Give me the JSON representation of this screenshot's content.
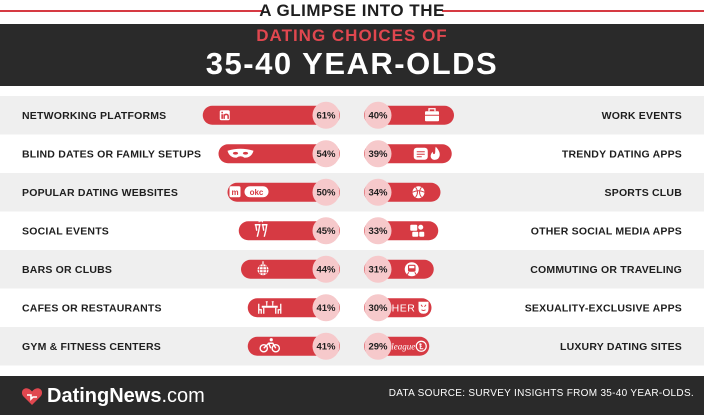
{
  "header": {
    "pretitle": "A GLIMPSE INTO THE",
    "subtitle": "DATING CHOICES OF",
    "title": "35-40 YEAR-OLDS"
  },
  "colors": {
    "accent": "#d63a43",
    "bubble": "#f6c9cb",
    "dark": "#2a2a2a",
    "stripe": "#efefef"
  },
  "chart_data": {
    "type": "bar",
    "title": "A GLIMPSE INTO THE DATING CHOICES OF 35-40 YEAR-OLDS",
    "unit": "%",
    "left": [
      {
        "label": "NETWORKING PLATFORMS",
        "value": 61,
        "display": "61%",
        "icon": "linkedin-icon"
      },
      {
        "label": "BLIND DATES OR FAMILY SETUPS",
        "value": 54,
        "display": "54%",
        "icon": "mask-icon"
      },
      {
        "label": "POPULAR DATING WEBSITES",
        "value": 50,
        "display": "50%",
        "icon": "dating-sites-icon"
      },
      {
        "label": "SOCIAL EVENTS",
        "value": 45,
        "display": "45%",
        "icon": "cheers-icon"
      },
      {
        "label": "BARS OR CLUBS",
        "value": 44,
        "display": "44%",
        "icon": "disco-ball-icon"
      },
      {
        "label": "CAFES OR RESTAURANTS",
        "value": 41,
        "display": "41%",
        "icon": "dinner-table-icon"
      },
      {
        "label": "GYM & FITNESS CENTERS",
        "value": 41,
        "display": "41%",
        "icon": "cycling-icon"
      }
    ],
    "right": [
      {
        "label": "WORK EVENTS",
        "value": 40,
        "display": "40%",
        "icon": "briefcase-icon"
      },
      {
        "label": "TRENDY DATING APPS",
        "value": 39,
        "display": "39%",
        "icon": "dating-apps-icon"
      },
      {
        "label": "SPORTS CLUB",
        "value": 34,
        "display": "34%",
        "icon": "ball-icon"
      },
      {
        "label": "OTHER SOCIAL MEDIA APPS",
        "value": 33,
        "display": "33%",
        "icon": "social-media-icon"
      },
      {
        "label": "COMMUTING OR TRAVELING",
        "value": 31,
        "display": "31%",
        "icon": "train-icon"
      },
      {
        "label": "SEXUALITY-EXCLUSIVE APPS",
        "value": 30,
        "display": "30%",
        "icon": "her-app-icon",
        "icon_text": "HER"
      },
      {
        "label": "LUXURY DATING SITES",
        "value": 29,
        "display": "29%",
        "icon": "the-league-icon",
        "icon_text": "league"
      }
    ]
  },
  "footer": {
    "brand_main": "DatingNews",
    "brand_suffix": ".com",
    "source": "DATA SOURCE: SURVEY INSIGHTS FROM 35-40 YEAR-OLDS."
  }
}
